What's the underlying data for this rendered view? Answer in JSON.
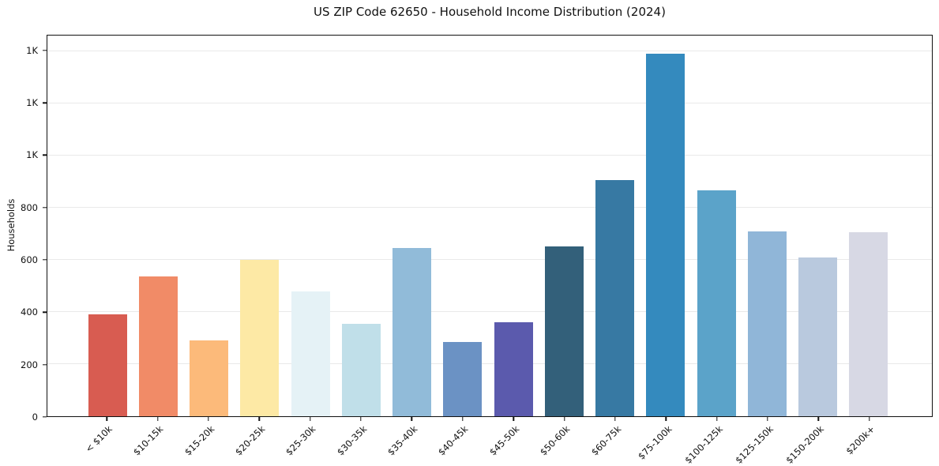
{
  "chart_data": {
    "type": "bar",
    "title": "US ZIP Code 62650 - Household Income Distribution (2024)",
    "xlabel": "",
    "ylabel": "Households",
    "categories": [
      "< $10k",
      "$10-15k",
      "$15-20k",
      "$20-25k",
      "$25-30k",
      "$30-35k",
      "$35-40k",
      "$40-45k",
      "$45-50k",
      "$50-60k",
      "$60-75k",
      "$75-100k",
      "$100-125k",
      "$125-150k",
      "$150-200k",
      "$200k+"
    ],
    "values": [
      390,
      535,
      290,
      600,
      480,
      355,
      645,
      285,
      360,
      650,
      905,
      1390,
      865,
      710,
      610,
      705
    ],
    "bar_colors": [
      "#d85c51",
      "#f18b67",
      "#fcba7a",
      "#fde9a5",
      "#e5f2f6",
      "#c0dfe9",
      "#91bbd9",
      "#6b92c4",
      "#5b5aad",
      "#33607a",
      "#3779a3",
      "#348abe",
      "#5ba3c9",
      "#90b6d8",
      "#b9c9de",
      "#d7d8e4"
    ],
    "ylim": [
      0,
      1460
    ],
    "yticks": [
      {
        "value": 0,
        "label": "0"
      },
      {
        "value": 200,
        "label": "200"
      },
      {
        "value": 400,
        "label": "400"
      },
      {
        "value": 600,
        "label": "600"
      },
      {
        "value": 800,
        "label": "800"
      },
      {
        "value": 1000,
        "label": "1K"
      },
      {
        "value": 1200,
        "label": "1K"
      },
      {
        "value": 1400,
        "label": "1K"
      }
    ],
    "grid": "horizontal",
    "legend": "none",
    "axis_color": "#111111",
    "gridline_color": "#e9e9e9",
    "background_color": "#ffffff"
  }
}
